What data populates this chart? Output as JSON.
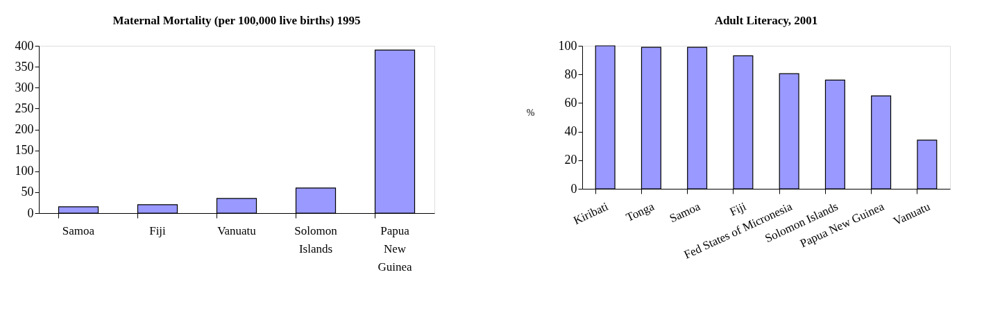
{
  "chart_data": [
    {
      "type": "bar",
      "title": "Maternal Mortality (per 100,000 live births) 1995",
      "categories": [
        "Samoa",
        "Fiji",
        "Vanuatu",
        "Solomon Islands",
        "Papua New Guinea"
      ],
      "values": [
        15,
        20,
        35,
        60,
        390
      ],
      "color": "#9999ff",
      "ylim": [
        0,
        400
      ],
      "yticks": [
        0,
        50,
        100,
        150,
        200,
        250,
        300,
        350,
        400
      ],
      "grid": false
    },
    {
      "type": "bar",
      "title": "Adult Literacy, 2001",
      "ylabel": "%",
      "categories": [
        "Kiribati",
        "Tonga",
        "Samoa",
        "Fiji",
        "Fed States of Micronesia",
        "Solomon Islands",
        "Papua New Guinea",
        "Vanuatu"
      ],
      "values": [
        100,
        99,
        99,
        93,
        80.5,
        76,
        65,
        34
      ],
      "color": "#9999ff",
      "ylim": [
        0,
        100
      ],
      "yticks": [
        0,
        20,
        40,
        60,
        80,
        100
      ],
      "grid": false
    }
  ]
}
